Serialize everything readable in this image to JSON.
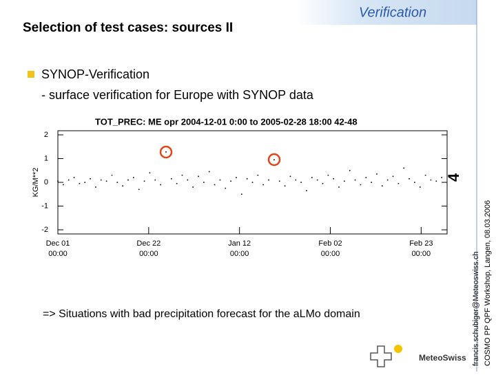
{
  "slide": {
    "title": "Selection of test cases: sources II",
    "header_tag": "Verification",
    "bullet": "SYNOP-Verification",
    "sub_bullet": "- surface verification for Europe with SYNOP data",
    "conclusion": "=> Situations with bad precipitation forecast for the aLMo domain",
    "side_email": "francis.schubiger@Meteoswiss.ch",
    "side_event": "COSMO PP QPF Workshop, Langen, 08.03.2006",
    "page_number": "4",
    "logo": "MeteoSwiss"
  },
  "chart_data": {
    "type": "scatter",
    "title": "TOT_PREC: ME opr 2004-12-01  0:00 to 2005-02-28 18:00 42-48",
    "y_label": "KG/M**2",
    "color": "#000000",
    "xlim": [
      0,
      90
    ],
    "ylim": [
      -2,
      2
    ],
    "yticks": [
      -2,
      -1,
      0,
      1,
      2
    ],
    "xticks": [
      {
        "value": 0,
        "label": [
          "Dec 01",
          "00:00"
        ]
      },
      {
        "value": 21,
        "label": [
          "Dec 22",
          "00:00"
        ]
      },
      {
        "value": 42,
        "label": [
          "Jan 12",
          "00:00"
        ]
      },
      {
        "value": 63,
        "label": [
          "Feb 02",
          "00:00"
        ]
      },
      {
        "value": 84,
        "label": [
          "Feb 23",
          "00:00"
        ]
      }
    ],
    "x": [
      0,
      1.25,
      2.5,
      3.75,
      5,
      6.25,
      7.5,
      8.75,
      10,
      11.25,
      12.5,
      13.75,
      15,
      16.25,
      17.5,
      18.75,
      20,
      21.25,
      22.5,
      23.75,
      25,
      26.25,
      27.5,
      28.75,
      30,
      31.25,
      32.5,
      33.75,
      35,
      36.25,
      37.5,
      38.75,
      40,
      41.25,
      42.5,
      43.75,
      45,
      46.25,
      47.5,
      48.75,
      50,
      51.25,
      52.5,
      53.75,
      55,
      56.25,
      57.5,
      58.75,
      60,
      61.25,
      62.5,
      63.75,
      65,
      66.25,
      67.5,
      68.75,
      70,
      71.25,
      72.5,
      73.75,
      75,
      76.25,
      77.5,
      78.75,
      80,
      81.25,
      82.5,
      83.75,
      85,
      86.25,
      87.5,
      88.75
    ],
    "values": [
      0.05,
      -0.1,
      0.1,
      0.2,
      -0.05,
      0.0,
      0.15,
      -0.2,
      0.1,
      0.05,
      0.3,
      0.0,
      -0.15,
      0.1,
      0.2,
      -0.3,
      0.05,
      0.4,
      0.1,
      -0.1,
      1.28,
      0.15,
      -0.05,
      0.3,
      0.1,
      -0.2,
      0.25,
      0.0,
      0.45,
      -0.1,
      0.1,
      -0.25,
      0.05,
      0.2,
      -0.5,
      0.15,
      0.0,
      0.3,
      -0.1,
      0.1,
      0.95,
      0.05,
      -0.15,
      0.25,
      0.1,
      0.0,
      -0.35,
      0.2,
      0.1,
      -0.05,
      0.3,
      0.15,
      -0.2,
      0.05,
      0.5,
      0.1,
      -0.1,
      0.2,
      0.0,
      0.35,
      -0.15,
      0.1,
      0.25,
      -0.05,
      0.6,
      0.15,
      0.0,
      -0.2,
      0.3,
      0.1,
      0.05,
      0.2
    ]
  }
}
